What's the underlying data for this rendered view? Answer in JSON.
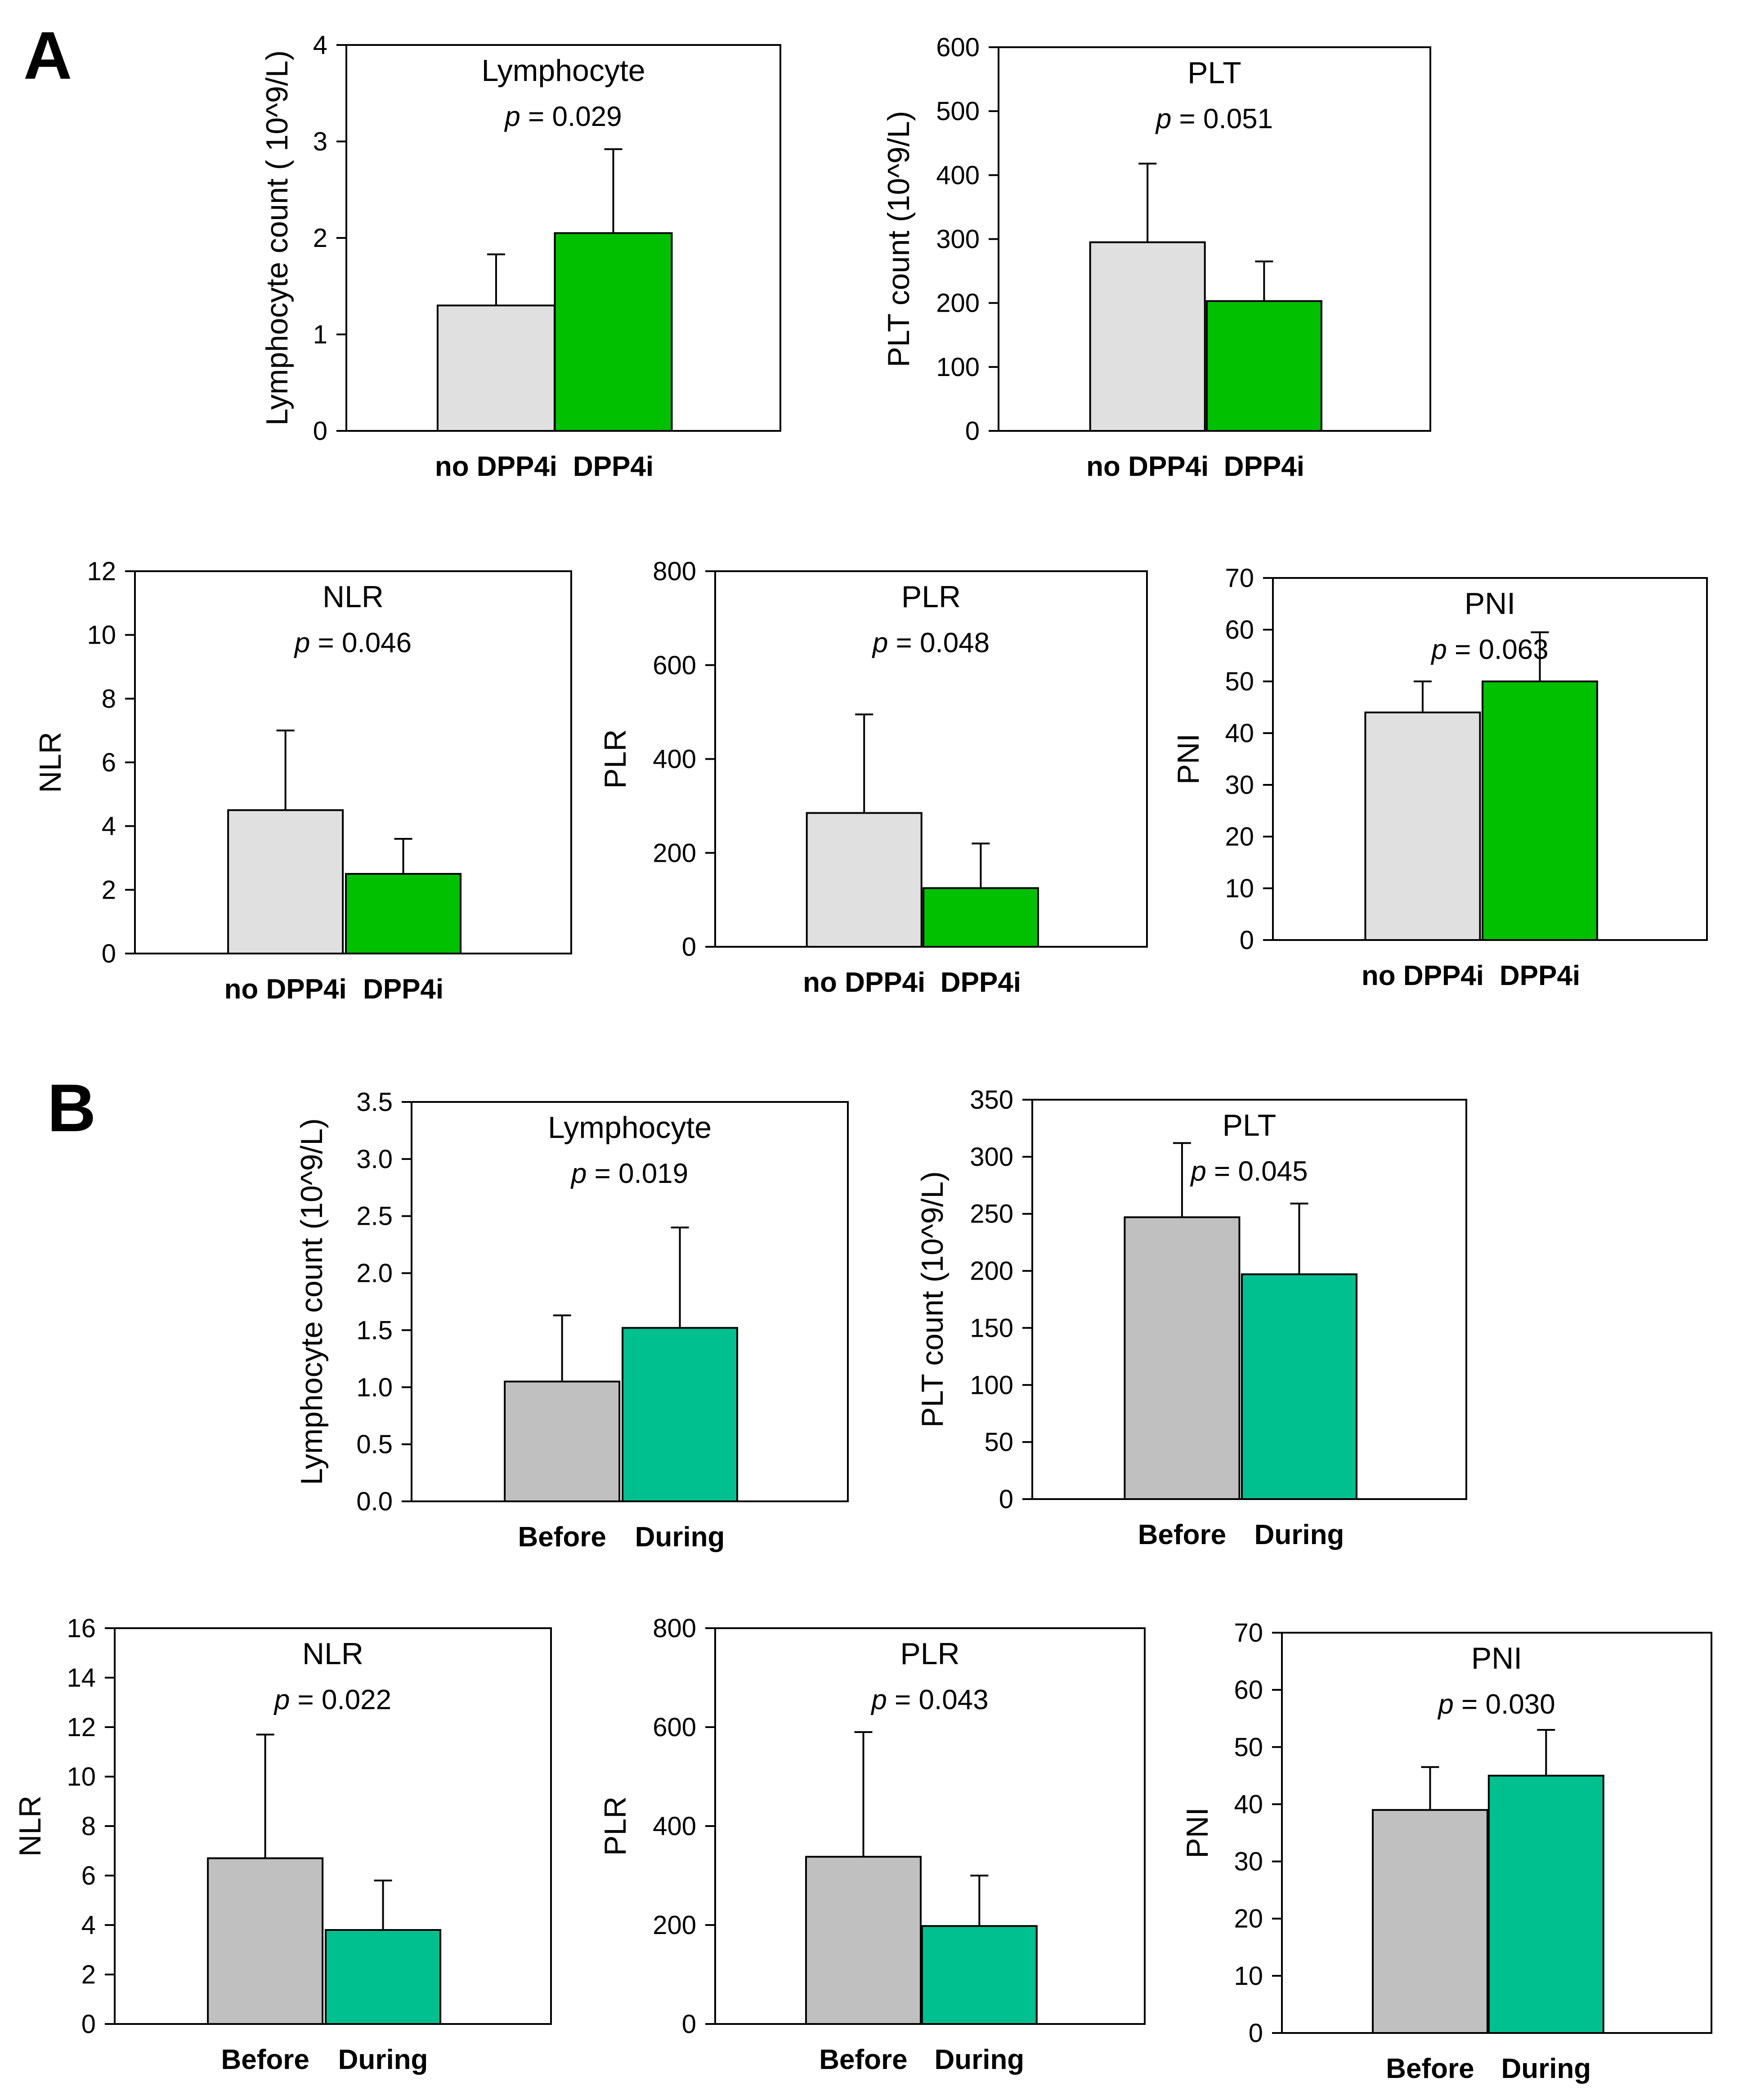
{
  "panels": [
    {
      "letter": "A"
    },
    {
      "letter": "B"
    }
  ],
  "colors": {
    "grey_light": "#e0e0e0",
    "grey_dark": "#c0c0c0",
    "green": "#00c000",
    "teal": "#00c08f",
    "stroke": "#000000"
  },
  "chart_data": [
    {
      "type": "bar",
      "panel": "A",
      "title": "Lymphocyte",
      "p_prefix": "p",
      "p_rest": " = 0.029",
      "ylabel": "Lymphocyte count ( 10^9/L)",
      "categories": [
        "no DPP4i",
        "DPP4i"
      ],
      "values": [
        1.3,
        2.05
      ],
      "errors": [
        0.53,
        0.87
      ],
      "ylim": [
        0,
        4
      ],
      "yticks": [
        "0",
        "1",
        "2",
        "3",
        "4"
      ],
      "bar_colors": [
        "#e0e0e0",
        "#00c000"
      ]
    },
    {
      "type": "bar",
      "panel": "A",
      "title": "PLT",
      "p_prefix": "p",
      "p_rest": " = 0.051",
      "ylabel": "PLT count (10^9/L)",
      "categories": [
        "no DPP4i",
        "DPP4i"
      ],
      "values": [
        295,
        203
      ],
      "errors": [
        123,
        62
      ],
      "ylim": [
        0,
        600
      ],
      "yticks": [
        "0",
        "100",
        "200",
        "300",
        "400",
        "500",
        "600"
      ],
      "bar_colors": [
        "#e0e0e0",
        "#00c000"
      ]
    },
    {
      "type": "bar",
      "panel": "A",
      "title": "NLR",
      "p_prefix": "p",
      "p_rest": " = 0.046",
      "ylabel": "NLR",
      "categories": [
        "no DPP4i",
        "DPP4i"
      ],
      "values": [
        4.5,
        2.5
      ],
      "errors": [
        2.5,
        1.1
      ],
      "ylim": [
        0,
        12
      ],
      "yticks": [
        "0",
        "2",
        "4",
        "6",
        "8",
        "10",
        "12"
      ],
      "bar_colors": [
        "#e0e0e0",
        "#00c000"
      ]
    },
    {
      "type": "bar",
      "panel": "A",
      "title": "PLR",
      "p_prefix": "p",
      "p_rest": " = 0.048",
      "ylabel": "PLR",
      "categories": [
        "no DPP4i",
        "DPP4i"
      ],
      "values": [
        285,
        125
      ],
      "errors": [
        210,
        95
      ],
      "ylim": [
        0,
        800
      ],
      "yticks": [
        "0",
        "200",
        "400",
        "600",
        "800"
      ],
      "bar_colors": [
        "#e0e0e0",
        "#00c000"
      ]
    },
    {
      "type": "bar",
      "panel": "A",
      "title": "PNI",
      "p_prefix": "p",
      "p_rest": " = 0.063",
      "ylabel": "PNI",
      "categories": [
        "no DPP4i",
        "DPP4i"
      ],
      "values": [
        44,
        50
      ],
      "errors": [
        6,
        9.5
      ],
      "ylim": [
        0,
        70
      ],
      "yticks": [
        "0",
        "10",
        "20",
        "30",
        "40",
        "50",
        "60",
        "70"
      ],
      "bar_colors": [
        "#e0e0e0",
        "#00c000"
      ]
    },
    {
      "type": "bar",
      "panel": "B",
      "title": "Lymphocyte",
      "p_prefix": "p",
      "p_rest": " = 0.019",
      "ylabel": "Lymphocyte count (10^9/L)",
      "categories": [
        "Before",
        "During"
      ],
      "values": [
        1.05,
        1.52
      ],
      "errors": [
        0.58,
        0.88
      ],
      "ylim": [
        0,
        3.5
      ],
      "yticks": [
        "0.0",
        "0.5",
        "1.0",
        "1.5",
        "2.0",
        "2.5",
        "3.0",
        "3.5"
      ],
      "bar_colors": [
        "#c0c0c0",
        "#00c08f"
      ]
    },
    {
      "type": "bar",
      "panel": "B",
      "title": "PLT",
      "p_prefix": "p",
      "p_rest": " = 0.045",
      "ylabel": "PLT count (10^9/L)",
      "categories": [
        "Before",
        "During"
      ],
      "values": [
        247,
        197
      ],
      "errors": [
        65,
        62
      ],
      "ylim": [
        0,
        350
      ],
      "yticks": [
        "0",
        "50",
        "100",
        "150",
        "200",
        "250",
        "300",
        "350"
      ],
      "bar_colors": [
        "#c0c0c0",
        "#00c08f"
      ]
    },
    {
      "type": "bar",
      "panel": "B",
      "title": "NLR",
      "p_prefix": "p",
      "p_rest": " = 0.022",
      "ylabel": "NLR",
      "categories": [
        "Before",
        "During"
      ],
      "values": [
        6.7,
        3.8
      ],
      "errors": [
        5.0,
        2.0
      ],
      "ylim": [
        0,
        16
      ],
      "yticks": [
        "0",
        "2",
        "4",
        "6",
        "8",
        "10",
        "12",
        "14",
        "16"
      ],
      "bar_colors": [
        "#c0c0c0",
        "#00c08f"
      ]
    },
    {
      "type": "bar",
      "panel": "B",
      "title": "PLR",
      "p_prefix": "p",
      "p_rest": " = 0.043",
      "ylabel": "PLR",
      "categories": [
        "Before",
        "During"
      ],
      "values": [
        338,
        198
      ],
      "errors": [
        252,
        102
      ],
      "ylim": [
        0,
        800
      ],
      "yticks": [
        "0",
        "200",
        "400",
        "600",
        "800"
      ],
      "bar_colors": [
        "#c0c0c0",
        "#00c08f"
      ]
    },
    {
      "type": "bar",
      "panel": "B",
      "title": "PNI",
      "p_prefix": "p",
      "p_rest": " = 0.030",
      "ylabel": "PNI",
      "categories": [
        "Before",
        "During"
      ],
      "values": [
        39,
        45
      ],
      "errors": [
        7.5,
        8
      ],
      "ylim": [
        0,
        70
      ],
      "yticks": [
        "0",
        "10",
        "20",
        "30",
        "40",
        "50",
        "60",
        "70"
      ],
      "bar_colors": [
        "#c0c0c0",
        "#00c08f"
      ]
    }
  ]
}
